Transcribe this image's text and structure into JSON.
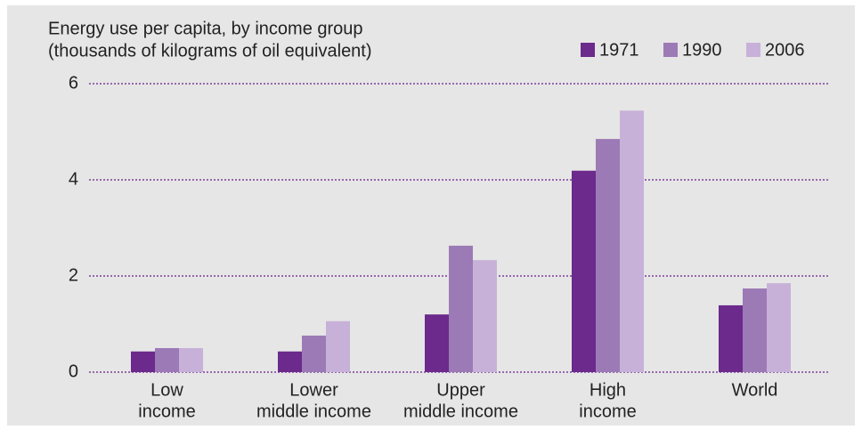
{
  "chart_data": {
    "type": "bar",
    "title": [
      "Energy use per capita, by income group",
      "(thousands of kilograms of oil equivalent)"
    ],
    "categories": [
      [
        "Low",
        "income"
      ],
      [
        "Lower",
        "middle income"
      ],
      [
        "Upper",
        "middle income"
      ],
      [
        "High",
        "income"
      ],
      [
        "World"
      ]
    ],
    "series": [
      {
        "name": "1971",
        "color": "#6b2a8c",
        "values": [
          0.43,
          0.43,
          1.2,
          4.19,
          1.39
        ]
      },
      {
        "name": "1990",
        "color": "#9c7ab6",
        "values": [
          0.5,
          0.76,
          2.63,
          4.85,
          1.74
        ]
      },
      {
        "name": "2006",
        "color": "#c7b1d8",
        "values": [
          0.5,
          1.06,
          2.33,
          5.44,
          1.85
        ]
      }
    ],
    "ylim": [
      0,
      6
    ],
    "yticks": [
      0,
      2,
      4,
      6
    ],
    "grid": true,
    "legend": "top-right"
  }
}
